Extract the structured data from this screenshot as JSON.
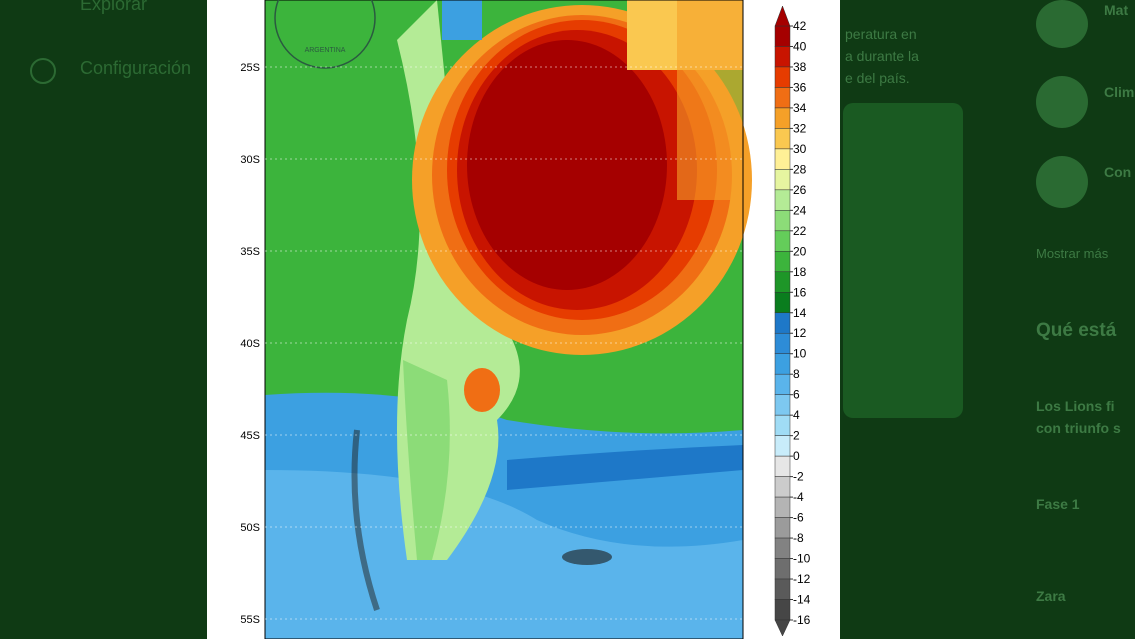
{
  "sidebar": {
    "items": [
      "Explorar",
      "Configuración"
    ]
  },
  "tweet_text": [
    "peratura en",
    "a durante la",
    "e del país."
  ],
  "map": {
    "lat_labels": [
      "25S",
      "30S",
      "35S",
      "40S",
      "45S",
      "50S",
      "55S"
    ],
    "logo_text": "ARGENTINA"
  },
  "colorbar": {
    "levels": [
      42,
      40,
      38,
      36,
      34,
      32,
      30,
      28,
      26,
      24,
      22,
      20,
      18,
      16,
      14,
      12,
      10,
      8,
      6,
      4,
      2,
      0,
      -2,
      -4,
      -6,
      -8,
      -10,
      -12,
      -14,
      -16
    ],
    "colors": [
      "#a50000",
      "#c81400",
      "#e63c00",
      "#f06e14",
      "#f5a028",
      "#fac850",
      "#fff096",
      "#e6f5a0",
      "#b4eb96",
      "#8cdc78",
      "#64cd5a",
      "#3cb43c",
      "#1e9628",
      "#0a7d1e",
      "#1e78c8",
      "#2d8cd7",
      "#3ca0e1",
      "#5ab4eb",
      "#7dc8f0",
      "#a0dcf5",
      "#c8ecfa",
      "#e6e6e6",
      "#cccccc",
      "#b4b4b4",
      "#9b9b9b",
      "#828282",
      "#6e6e6e",
      "#5a5a5a",
      "#464646"
    ]
  },
  "right_panel": {
    "accounts": [
      "Mat",
      "Clim",
      "Con"
    ],
    "show_more": "Mostrar más",
    "section_title": "Qué está",
    "trends": [
      "Los Lions fi",
      "con triunfo s",
      "Fase 1",
      "Zara"
    ]
  }
}
